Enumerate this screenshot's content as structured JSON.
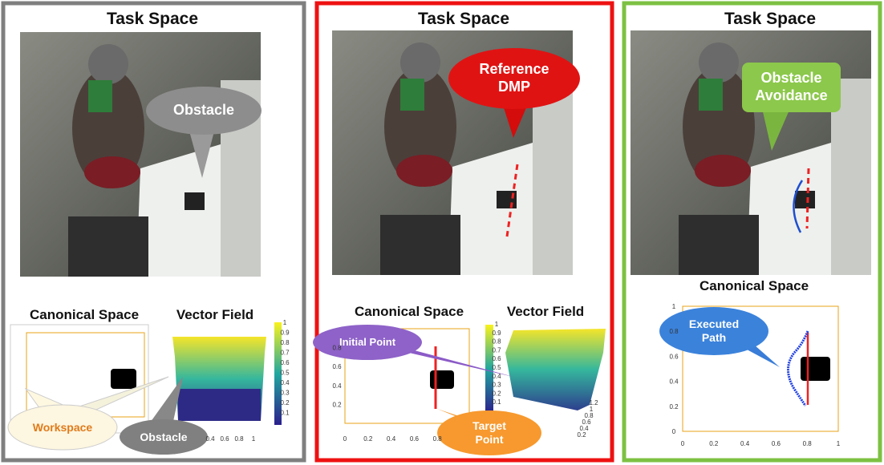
{
  "panels": [
    {
      "title": "Task Space",
      "callout": "Obstacle",
      "canonical": {
        "title": "Canonical Space"
      },
      "vector_field": {
        "title": "Vector Field",
        "xticks": [
          0.4,
          0.6,
          0.8,
          1
        ],
        "colorbar_ticks": [
          0.1,
          0.2,
          0.3,
          0.4,
          0.5,
          0.6,
          0.7,
          0.8,
          0.9,
          1
        ]
      },
      "labels": [
        "Workspace",
        "Obstacle"
      ]
    },
    {
      "title": "Task Space",
      "callout": "Reference DMP",
      "canonical": {
        "title": "Canonical Space",
        "xticks": [
          0,
          0.2,
          0.4,
          0.6,
          0.8
        ],
        "yticks": [
          0.2,
          0.4,
          0.6,
          0.8
        ]
      },
      "vector_field": {
        "title": "Vector Field",
        "colorbar_ticks": [
          0.1,
          0.2,
          0.3,
          0.4,
          0.5,
          0.6,
          0.7,
          0.8,
          0.9,
          1
        ],
        "depth_ticks": [
          1.2,
          1,
          0.8,
          0.6,
          0.4,
          0.2
        ]
      },
      "labels": [
        "Initial Point",
        "Target Point"
      ]
    },
    {
      "title": "Task Space",
      "callout": "Obstacle Avoidance",
      "canonical": {
        "title": "Canonical Space",
        "xticks": [
          0,
          0.2,
          0.4,
          0.6,
          0.8,
          1
        ],
        "yticks": [
          0,
          0.2,
          0.4,
          0.6,
          0.8,
          1
        ]
      },
      "labels": [
        "Executed Path"
      ]
    }
  ]
}
